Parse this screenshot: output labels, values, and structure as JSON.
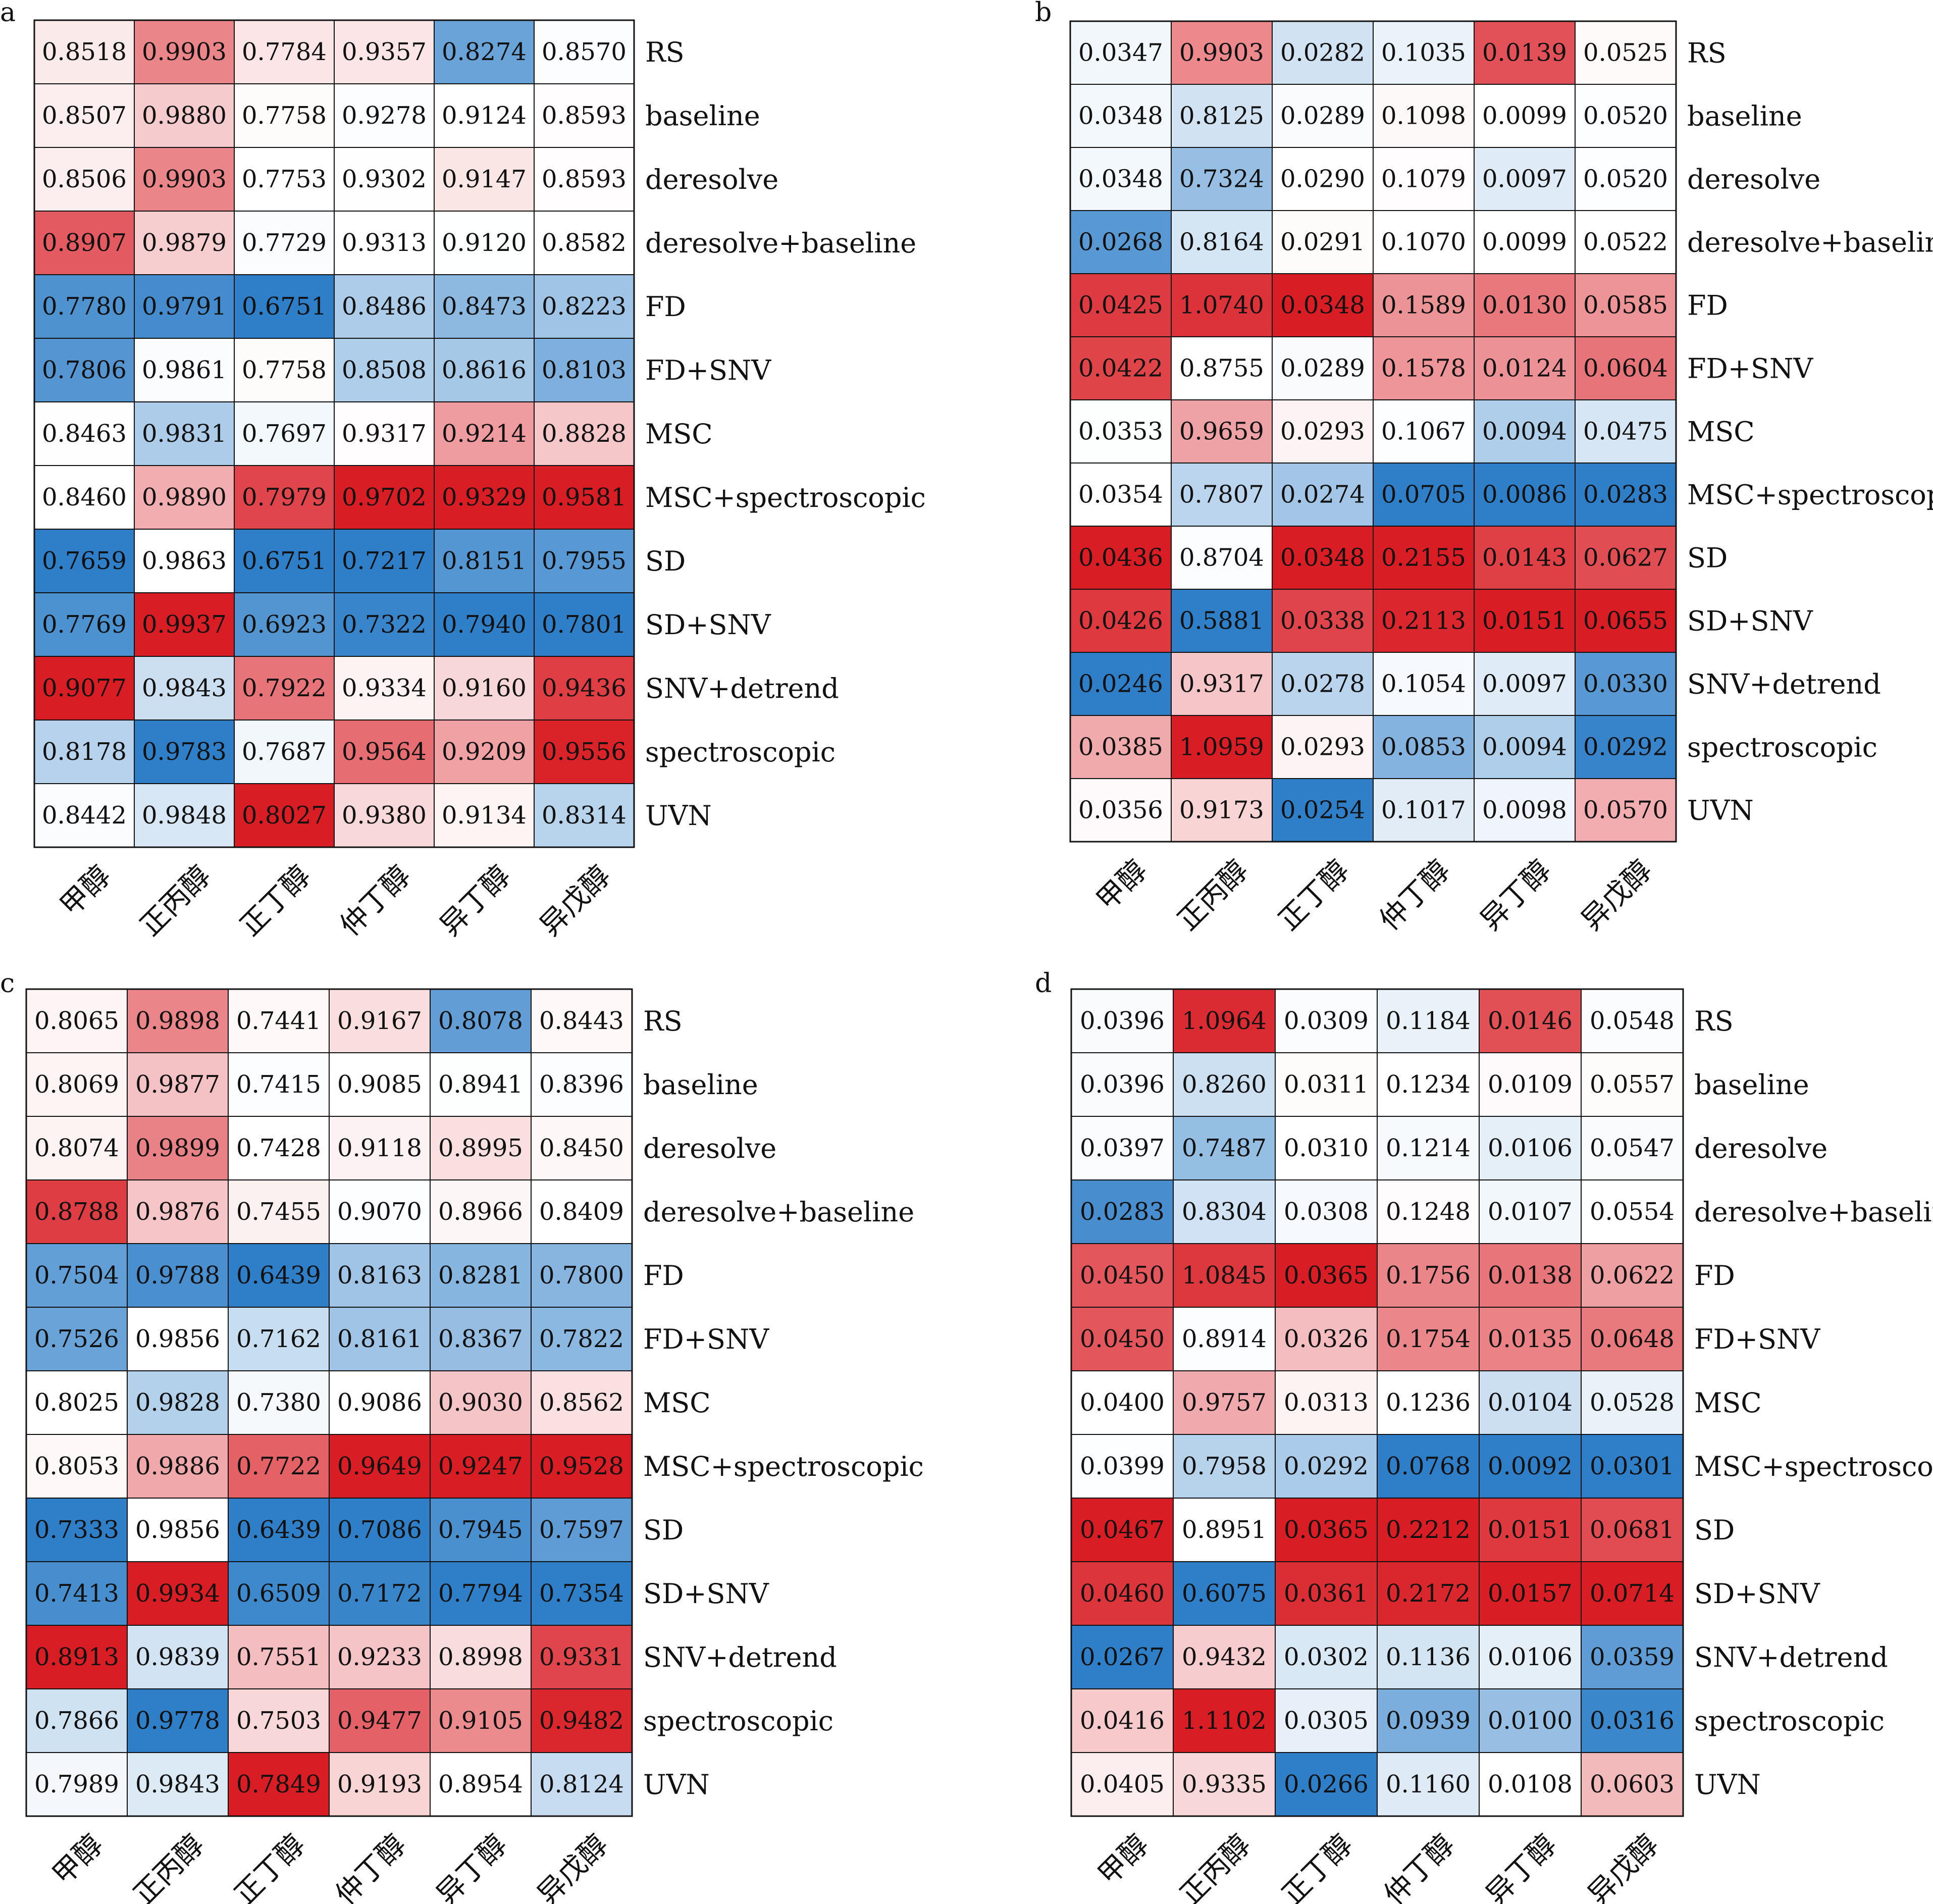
{
  "colors": {
    "low": "#2f7fc8",
    "mid": "#ffffff",
    "high": "#d81d24",
    "grid": "#111111"
  },
  "chart_data": [
    {
      "type": "heatmap",
      "panel": "a",
      "columns": [
        "甲醇",
        "正丙醇",
        "正丁醇",
        "仲丁醇",
        "异丁醇",
        "异戊醇"
      ],
      "rows": [
        "RS",
        "baseline",
        "deresolve",
        "deresolve+baseline",
        "FD",
        "FD+SNV",
        "MSC",
        "MSC+spectroscopic",
        "SD",
        "SD+SNV",
        "SNV+detrend",
        "spectroscopic",
        "UVN"
      ],
      "values": [
        [
          "0.8518",
          "0.9903",
          "0.7784",
          "0.9357",
          "0.8274",
          "0.8570"
        ],
        [
          "0.8507",
          "0.9880",
          "0.7758",
          "0.9278",
          "0.9124",
          "0.8593"
        ],
        [
          "0.8506",
          "0.9903",
          "0.7753",
          "0.9302",
          "0.9147",
          "0.8593"
        ],
        [
          "0.8907",
          "0.9879",
          "0.7729",
          "0.9313",
          "0.9120",
          "0.8582"
        ],
        [
          "0.7780",
          "0.9791",
          "0.6751",
          "0.8486",
          "0.8473",
          "0.8223"
        ],
        [
          "0.7806",
          "0.9861",
          "0.7758",
          "0.8508",
          "0.8616",
          "0.8103"
        ],
        [
          "0.8463",
          "0.9831",
          "0.7697",
          "0.9317",
          "0.9214",
          "0.8828"
        ],
        [
          "0.8460",
          "0.9890",
          "0.7979",
          "0.9702",
          "0.9329",
          "0.9581"
        ],
        [
          "0.7659",
          "0.9863",
          "0.6751",
          "0.7217",
          "0.8151",
          "0.7955"
        ],
        [
          "0.7769",
          "0.9937",
          "0.6923",
          "0.7322",
          "0.7940",
          "0.7801"
        ],
        [
          "0.9077",
          "0.9843",
          "0.7922",
          "0.9334",
          "0.9160",
          "0.9436"
        ],
        [
          "0.8178",
          "0.9783",
          "0.7687",
          "0.9564",
          "0.9209",
          "0.9556"
        ],
        [
          "0.8442",
          "0.9848",
          "0.8027",
          "0.9380",
          "0.9134",
          "0.8314"
        ]
      ],
      "color_scale": "per-column, blue (low) to white to red (high)"
    },
    {
      "type": "heatmap",
      "panel": "b",
      "columns": [
        "甲醇",
        "正丙醇",
        "正丁醇",
        "仲丁醇",
        "异丁醇",
        "异戊醇"
      ],
      "rows": [
        "RS",
        "baseline",
        "deresolve",
        "deresolve+baseline",
        "FD",
        "FD+SNV",
        "MSC",
        "MSC+spectroscopic",
        "SD",
        "SD+SNV",
        "SNV+detrend",
        "spectroscopic",
        "UVN"
      ],
      "values": [
        [
          "0.0347",
          "0.9903",
          "0.0282",
          "0.1035",
          "0.0139",
          "0.0525"
        ],
        [
          "0.0348",
          "0.8125",
          "0.0289",
          "0.1098",
          "0.0099",
          "0.0520"
        ],
        [
          "0.0348",
          "0.7324",
          "0.0290",
          "0.1079",
          "0.0097",
          "0.0520"
        ],
        [
          "0.0268",
          "0.8164",
          "0.0291",
          "0.1070",
          "0.0099",
          "0.0522"
        ],
        [
          "0.0425",
          "1.0740",
          "0.0348",
          "0.1589",
          "0.0130",
          "0.0585"
        ],
        [
          "0.0422",
          "0.8755",
          "0.0289",
          "0.1578",
          "0.0124",
          "0.0604"
        ],
        [
          "0.0353",
          "0.9659",
          "0.0293",
          "0.1067",
          "0.0094",
          "0.0475"
        ],
        [
          "0.0354",
          "0.7807",
          "0.0274",
          "0.0705",
          "0.0086",
          "0.0283"
        ],
        [
          "0.0436",
          "0.8704",
          "0.0348",
          "0.2155",
          "0.0143",
          "0.0627"
        ],
        [
          "0.0426",
          "0.5881",
          "0.0338",
          "0.2113",
          "0.0151",
          "0.0655"
        ],
        [
          "0.0246",
          "0.9317",
          "0.0278",
          "0.1054",
          "0.0097",
          "0.0330"
        ],
        [
          "0.0385",
          "1.0959",
          "0.0293",
          "0.0853",
          "0.0094",
          "0.0292"
        ],
        [
          "0.0356",
          "0.9173",
          "0.0254",
          "0.1017",
          "0.0098",
          "0.0570"
        ]
      ],
      "color_scale": "per-column, blue (low) to white to red (high)"
    },
    {
      "type": "heatmap",
      "panel": "c",
      "columns": [
        "甲醇",
        "正丙醇",
        "正丁醇",
        "仲丁醇",
        "异丁醇",
        "异戊醇"
      ],
      "rows": [
        "RS",
        "baseline",
        "deresolve",
        "deresolve+baseline",
        "FD",
        "FD+SNV",
        "MSC",
        "MSC+spectroscopic",
        "SD",
        "SD+SNV",
        "SNV+detrend",
        "spectroscopic",
        "UVN"
      ],
      "values": [
        [
          "0.8065",
          "0.9898",
          "0.7441",
          "0.9167",
          "0.8078",
          "0.8443"
        ],
        [
          "0.8069",
          "0.9877",
          "0.7415",
          "0.9085",
          "0.8941",
          "0.8396"
        ],
        [
          "0.8074",
          "0.9899",
          "0.7428",
          "0.9118",
          "0.8995",
          "0.8450"
        ],
        [
          "0.8788",
          "0.9876",
          "0.7455",
          "0.9070",
          "0.8966",
          "0.8409"
        ],
        [
          "0.7504",
          "0.9788",
          "0.6439",
          "0.8163",
          "0.8281",
          "0.7800"
        ],
        [
          "0.7526",
          "0.9856",
          "0.7162",
          "0.8161",
          "0.8367",
          "0.7822"
        ],
        [
          "0.8025",
          "0.9828",
          "0.7380",
          "0.9086",
          "0.9030",
          "0.8562"
        ],
        [
          "0.8053",
          "0.9886",
          "0.7722",
          "0.9649",
          "0.9247",
          "0.9528"
        ],
        [
          "0.7333",
          "0.9856",
          "0.6439",
          "0.7086",
          "0.7945",
          "0.7597"
        ],
        [
          "0.7413",
          "0.9934",
          "0.6509",
          "0.7172",
          "0.7794",
          "0.7354"
        ],
        [
          "0.8913",
          "0.9839",
          "0.7551",
          "0.9233",
          "0.8998",
          "0.9331"
        ],
        [
          "0.7866",
          "0.9778",
          "0.7503",
          "0.9477",
          "0.9105",
          "0.9482"
        ],
        [
          "0.7989",
          "0.9843",
          "0.7849",
          "0.9193",
          "0.8954",
          "0.8124"
        ]
      ],
      "color_scale": "per-column, blue (low) to white to red (high)"
    },
    {
      "type": "heatmap",
      "panel": "d",
      "columns": [
        "甲醇",
        "正丙醇",
        "正丁醇",
        "仲丁醇",
        "异丁醇",
        "异戊醇"
      ],
      "rows": [
        "RS",
        "baseline",
        "deresolve",
        "deresolve+baseline",
        "FD",
        "FD+SNV",
        "MSC",
        "MSC+spectroscopic",
        "SD",
        "SD+SNV",
        "SNV+detrend",
        "spectroscopic",
        "UVN"
      ],
      "values": [
        [
          "0.0396",
          "1.0964",
          "0.0309",
          "0.1184",
          "0.0146",
          "0.0548"
        ],
        [
          "0.0396",
          "0.8260",
          "0.0311",
          "0.1234",
          "0.0109",
          "0.0557"
        ],
        [
          "0.0397",
          "0.7487",
          "0.0310",
          "0.1214",
          "0.0106",
          "0.0547"
        ],
        [
          "0.0283",
          "0.8304",
          "0.0308",
          "0.1248",
          "0.0107",
          "0.0554"
        ],
        [
          "0.0450",
          "1.0845",
          "0.0365",
          "0.1756",
          "0.0138",
          "0.0622"
        ],
        [
          "0.0450",
          "0.8914",
          "0.0326",
          "0.1754",
          "0.0135",
          "0.0648"
        ],
        [
          "0.0400",
          "0.9757",
          "0.0313",
          "0.1236",
          "0.0104",
          "0.0528"
        ],
        [
          "0.0399",
          "0.7958",
          "0.0292",
          "0.0768",
          "0.0092",
          "0.0301"
        ],
        [
          "0.0467",
          "0.8951",
          "0.0365",
          "0.2212",
          "0.0151",
          "0.0681"
        ],
        [
          "0.0460",
          "0.6075",
          "0.0361",
          "0.2172",
          "0.0157",
          "0.0714"
        ],
        [
          "0.0267",
          "0.9432",
          "0.0302",
          "0.1136",
          "0.0106",
          "0.0359"
        ],
        [
          "0.0416",
          "1.1102",
          "0.0305",
          "0.0939",
          "0.0100",
          "0.0316"
        ],
        [
          "0.0405",
          "0.9335",
          "0.0266",
          "0.1160",
          "0.0108",
          "0.0603"
        ]
      ],
      "color_scale": "per-column, blue (low) to white to red (high)"
    }
  ]
}
